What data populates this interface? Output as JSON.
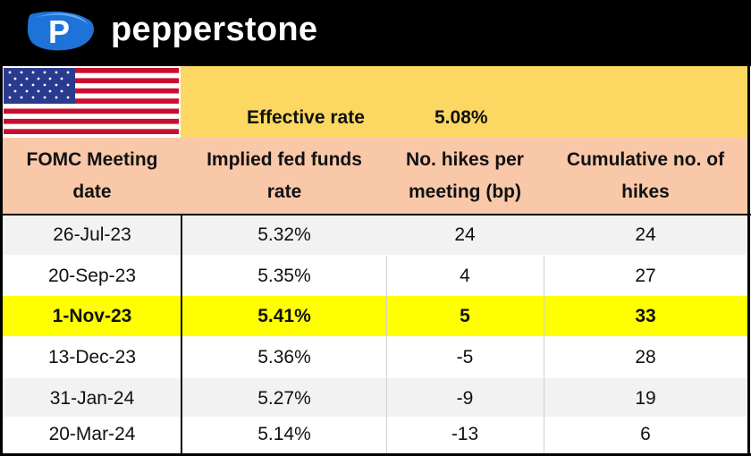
{
  "brand": {
    "name": "pepperstone",
    "logo_icon": "pepperstone-p-logo-icon"
  },
  "flag": {
    "icon": "us-flag-icon"
  },
  "summary": {
    "label": "Effective rate",
    "value": "5.08%"
  },
  "colors": {
    "summary_band": "#fcd863",
    "header_band": "#f9c8a9",
    "highlight": "#ffff00"
  },
  "table": {
    "headers": {
      "date": "FOMC Meeting date",
      "rate": "Implied fed funds rate",
      "hikes": "No. hikes per meeting (bp)",
      "cumulative": "Cumulative no. of hikes"
    },
    "rows": [
      {
        "date": "26-Jul-23",
        "rate": "5.32%",
        "hikes": "24",
        "cumulative": "24"
      },
      {
        "date": "20-Sep-23",
        "rate": "5.35%",
        "hikes": "4",
        "cumulative": "27"
      },
      {
        "date": "1-Nov-23",
        "rate": "5.41%",
        "hikes": "5",
        "cumulative": "33",
        "highlighted": true
      },
      {
        "date": "13-Dec-23",
        "rate": "5.36%",
        "hikes": "-5",
        "cumulative": "28"
      },
      {
        "date": "31-Jan-24",
        "rate": "5.27%",
        "hikes": "-9",
        "cumulative": "19"
      },
      {
        "date": "20-Mar-24",
        "rate": "5.14%",
        "hikes": "-13",
        "cumulative": "6"
      }
    ]
  }
}
